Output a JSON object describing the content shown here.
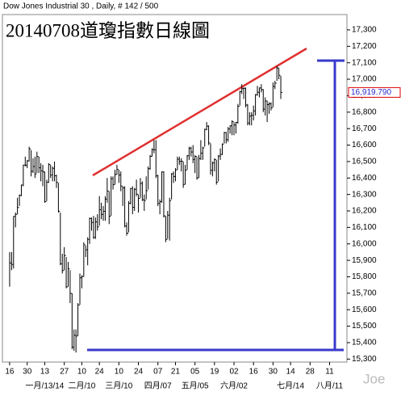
{
  "chart_data": {
    "type": "ohlc",
    "title": "Dow Jones Industrial 30 , Daily, # 142 / 500",
    "subtitle": "20140708道瓊指數日線圖",
    "watermark": "Joe",
    "color": "#000000",
    "high": [
      15950,
      15950,
      16168,
      16190,
      16280,
      16300,
      16360,
      16480,
      16530,
      16510,
      16590,
      16570,
      16520,
      16530,
      16560,
      16530,
      16490,
      16480,
      16440,
      16390,
      16490,
      16480,
      16470,
      16500,
      16420,
      16370,
      16190,
      15940,
      15980,
      15920,
      15890,
      15840,
      15700,
      15480,
      15480,
      15640,
      15820,
      15810,
      16010,
      15990,
      16040,
      16160,
      16160,
      16170,
      16160,
      16180,
      16290,
      16250,
      16230,
      16290,
      16400,
      16320,
      16410,
      16410,
      16450,
      16480,
      16450,
      16440,
      16350,
      16350,
      16130,
      16260,
      16340,
      16350,
      16340,
      16390,
      16300,
      16400,
      16380,
      16300,
      16410,
      16470,
      16540,
      16580,
      16630,
      16630,
      16420,
      16270,
      16440,
      16440,
      16170,
      16200,
      16280,
      16430,
      16440,
      16460,
      16530,
      16530,
      16520,
      16500,
      16480,
      16540,
      16590,
      16590,
      16600,
      16540,
      16530,
      16540,
      16630,
      16590,
      16700,
      16740,
      16720,
      16610,
      16500,
      16520,
      16510,
      16540,
      16580,
      16610,
      16680,
      16680,
      16710,
      16720,
      16750,
      16740,
      16740,
      16850,
      16930,
      16970,
      16950,
      16950,
      16850,
      16800,
      16800,
      16840,
      16910,
      16960,
      16950,
      16970,
      16940,
      16890,
      16870,
      16860,
      16860,
      16980,
      16990,
      17080,
      17070,
      17020
    ],
    "low": [
      15740,
      15840,
      15850,
      16100,
      16180,
      16230,
      16290,
      16350,
      16470,
      16460,
      16500,
      16410,
      16430,
      16400,
      16430,
      16430,
      16380,
      16350,
      16250,
      16260,
      16370,
      16400,
      16380,
      16380,
      16340,
      16190,
      15870,
      15820,
      15840,
      15730,
      15740,
      15640,
      15360,
      15350,
      15340,
      15440,
      15630,
      15730,
      15800,
      15920,
      15870,
      16000,
      16080,
      16030,
      16030,
      16080,
      16110,
      16150,
      16140,
      16140,
      16250,
      16120,
      16170,
      16330,
      16360,
      16420,
      16370,
      16320,
      16230,
      16100,
      16050,
      16070,
      16240,
      16180,
      16200,
      16290,
      16190,
      16280,
      16260,
      16200,
      16270,
      16330,
      16450,
      16530,
      16550,
      16400,
      16230,
      16180,
      16250,
      16160,
      16010,
      16030,
      16020,
      16270,
      16370,
      16380,
      16450,
      16480,
      16440,
      16340,
      16360,
      16450,
      16510,
      16530,
      16490,
      16430,
      16390,
      16400,
      16510,
      16510,
      16590,
      16690,
      16600,
      16420,
      16410,
      16440,
      16360,
      16380,
      16510,
      16540,
      16610,
      16610,
      16620,
      16670,
      16660,
      16660,
      16670,
      16730,
      16840,
      16910,
      16880,
      16830,
      16720,
      16720,
      16720,
      16750,
      16780,
      16900,
      16890,
      16920,
      16800,
      16780,
      16740,
      16790,
      16810,
      16830,
      16940,
      16990,
      17000,
      16880
    ],
    "close": [
      15884,
      15875,
      16167,
      16179,
      16221,
      16294,
      16357,
      16479,
      16478,
      16504,
      16577,
      16441,
      16470,
      16425,
      16530,
      16462,
      16444,
      16437,
      16257,
      16374,
      16482,
      16418,
      16459,
      16414,
      16373,
      16198,
      15879,
      15838,
      15929,
      15739,
      15848,
      15699,
      15373,
      15445,
      15440,
      15628,
      15794,
      15801,
      15994,
      15964,
      16027,
      16154,
      16130,
      16040,
      16133,
      16103,
      16207,
      16179,
      16198,
      16272,
      16321,
      16168,
      16396,
      16360,
      16421,
      16452,
      16418,
      16351,
      16340,
      16108,
      16065,
      16247,
      16336,
      16222,
      16331,
      16302,
      16276,
      16367,
      16268,
      16264,
      16323,
      16457,
      16532,
      16573,
      16572,
      16413,
      16246,
      16256,
      16437,
      16170,
      16027,
      16174,
      16263,
      16425,
      16409,
      16449,
      16514,
      16501,
      16502,
      16361,
      16448,
      16535,
      16581,
      16558,
      16513,
      16531,
      16401,
      16518,
      16551,
      16583,
      16695,
      16715,
      16613,
      16447,
      16491,
      16512,
      16375,
      16533,
      16543,
      16606,
      16676,
      16633,
      16698,
      16717,
      16743,
      16722,
      16738,
      16836,
      16924,
      16943,
      16945,
      16843,
      16734,
      16776,
      16781,
      16808,
      16906,
      16921,
      16947,
      16937,
      16818,
      16868,
      16846,
      16851,
      16827,
      16956,
      16976,
      17068,
      17024,
      16919.79
    ],
    "last_price": {
      "value": 16919.79,
      "label": "16,919.790"
    },
    "xlim": [
      -3.7,
      172.9
    ],
    "ylim": [
      15282,
      17393
    ],
    "yticks": [
      {
        "value": 17300,
        "label": "17,300"
      },
      {
        "value": 17200,
        "label": "17,200"
      },
      {
        "value": 17100,
        "label": "17,100"
      },
      {
        "value": 17000,
        "label": "17,000"
      },
      {
        "value": 16900,
        "label": "16,900"
      },
      {
        "value": 16800,
        "label": "16,800"
      },
      {
        "value": 16700,
        "label": "16,700"
      },
      {
        "value": 16600,
        "label": "16,600"
      },
      {
        "value": 16500,
        "label": "16,500"
      },
      {
        "value": 16400,
        "label": "16,400"
      },
      {
        "value": 16300,
        "label": "16,300"
      },
      {
        "value": 16200,
        "label": "16,200"
      },
      {
        "value": 16100,
        "label": "16,100"
      },
      {
        "value": 16000,
        "label": "16,000"
      },
      {
        "value": 15900,
        "label": "15,900"
      },
      {
        "value": 15800,
        "label": "15,800"
      },
      {
        "value": 15700,
        "label": "15,700"
      },
      {
        "value": 15600,
        "label": "15,600"
      },
      {
        "value": 15500,
        "label": "15,500"
      },
      {
        "value": 15400,
        "label": "15,400"
      },
      {
        "value": 15300,
        "label": "15,300"
      }
    ],
    "xticks": [
      {
        "value": 0,
        "label": "16"
      },
      {
        "value": 9,
        "label": "30"
      },
      {
        "value": 18,
        "label": "13"
      },
      {
        "value": 28,
        "label": "27"
      },
      {
        "value": 37,
        "label": "10"
      },
      {
        "value": 46,
        "label": "24"
      },
      {
        "value": 56,
        "label": "10"
      },
      {
        "value": 66,
        "label": "24"
      },
      {
        "value": 76,
        "label": "07"
      },
      {
        "value": 85,
        "label": "21"
      },
      {
        "value": 95,
        "label": "05"
      },
      {
        "value": 105,
        "label": "19"
      },
      {
        "value": 115,
        "label": "02"
      },
      {
        "value": 125,
        "label": "16"
      },
      {
        "value": 135,
        "label": "30"
      },
      {
        "value": 144,
        "label": "14"
      },
      {
        "value": 154,
        "label": "28"
      },
      {
        "value": 164,
        "label": "11"
      }
    ],
    "xticks2": [
      {
        "value": 18,
        "label": "一月/13/14"
      },
      {
        "value": 37,
        "label": "二月/10"
      },
      {
        "value": 56,
        "label": "三月/10"
      },
      {
        "value": 76,
        "label": "四月/07"
      },
      {
        "value": 95,
        "label": "五月/05"
      },
      {
        "value": 115,
        "label": "六月/02"
      },
      {
        "value": 144,
        "label": "七月/14"
      },
      {
        "value": 164,
        "label": "八月/11"
      }
    ]
  }
}
